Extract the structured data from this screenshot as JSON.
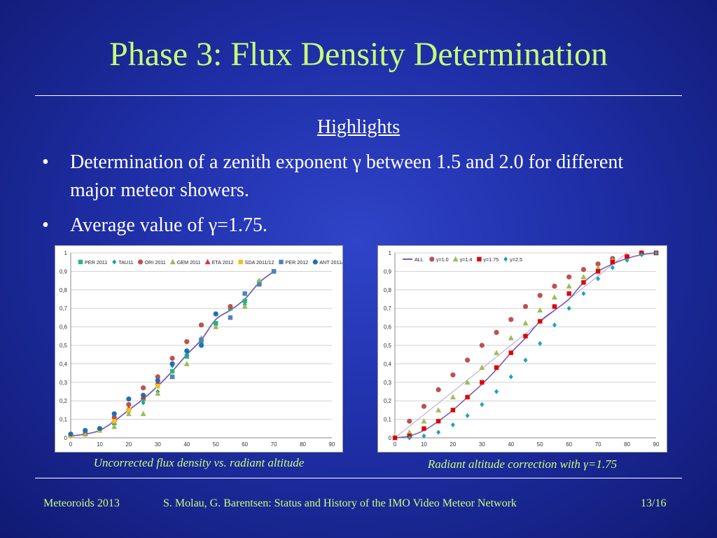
{
  "slide": {
    "title": "Phase 3: Flux Density Determination",
    "subheading": "Highlights",
    "bullets": [
      "Determination of a zenith exponent γ between 1.5 and 2.0 for different major meteor showers.",
      "Average value of γ=1.75."
    ],
    "bullet_symbol": "•",
    "captions": {
      "left": "Uncorrected flux density vs. radiant altitude",
      "right": "Radiant altitude correction with γ=1.75"
    },
    "footer": {
      "left": "Meteoroids 2013",
      "center": "S. Molau, G. Barentsen: Status and History of the IMO Video Meteor Network",
      "right": "13/16"
    },
    "colors": {
      "title": "#c7ff7a",
      "background": "#2236b4"
    }
  },
  "chart_data": [
    {
      "type": "scatter",
      "xlim": [
        0,
        90
      ],
      "ylim": [
        0,
        1
      ],
      "xticks": [
        "0",
        "10",
        "20",
        "30",
        "40",
        "50",
        "60",
        "70",
        "80",
        "90"
      ],
      "yticks": [
        "0",
        "0,1",
        "0,2",
        "0,3",
        "0,4",
        "0,5",
        "0,6",
        "0,7",
        "0,8",
        "0,9",
        "1"
      ],
      "grid": true,
      "legend": "top",
      "series": [
        {
          "name": "PER 2011",
          "color": "#2bb673",
          "marker": "square",
          "x": [
            0,
            5,
            10,
            15,
            20,
            25,
            30,
            35,
            40,
            45,
            50,
            55,
            60,
            65,
            70
          ],
          "y": [
            0.01,
            0.02,
            0.04,
            0.08,
            0.15,
            0.21,
            0.28,
            0.36,
            0.44,
            0.52,
            0.62,
            0.7,
            0.74,
            0.84,
            0.9
          ]
        },
        {
          "name": "TAU11",
          "color": "#1fa0a0",
          "marker": "diamond",
          "x": [
            0,
            5,
            10,
            15,
            20,
            25,
            30,
            35,
            40,
            45,
            50,
            55,
            60,
            65
          ],
          "y": [
            0.01,
            0.02,
            0.04,
            0.09,
            0.14,
            0.19,
            0.25,
            0.39,
            0.45,
            0.52,
            0.61,
            0.7,
            0.72,
            0.85
          ]
        },
        {
          "name": "ORI 2011",
          "color": "#c0504d",
          "marker": "circle",
          "x": [
            0,
            5,
            10,
            15,
            20,
            25,
            30,
            35,
            40,
            45,
            55
          ],
          "y": [
            0.01,
            0.02,
            0.05,
            0.11,
            0.18,
            0.27,
            0.33,
            0.43,
            0.52,
            0.61,
            0.71
          ]
        },
        {
          "name": "GEM 2011",
          "color": "#9bbb59",
          "marker": "triangle",
          "x": [
            0,
            5,
            10,
            15,
            20,
            25,
            30,
            35,
            40,
            45,
            50,
            60,
            65
          ],
          "y": [
            0.01,
            0.02,
            0.04,
            0.06,
            0.13,
            0.13,
            0.24,
            0.33,
            0.4,
            0.54,
            0.6,
            0.71,
            0.85
          ]
        },
        {
          "name": "ETA 2012",
          "color": "#e03030",
          "marker": "triangle",
          "x": [
            15,
            20,
            25,
            30
          ],
          "y": [
            0.1,
            0.16,
            0.22,
            0.3
          ]
        },
        {
          "name": "SDA 2011/12",
          "color": "#f0c020",
          "marker": "square",
          "x": [
            0,
            10,
            15,
            20,
            30
          ],
          "y": [
            0.01,
            0.04,
            0.09,
            0.15,
            0.28
          ]
        },
        {
          "name": "PER 2012",
          "color": "#4f81bd",
          "marker": "square",
          "x": [
            35,
            45,
            55,
            60,
            65,
            70
          ],
          "y": [
            0.33,
            0.53,
            0.65,
            0.78,
            0.83,
            0.9
          ]
        },
        {
          "name": "ANT 2011/12",
          "color": "#1f6fb2",
          "marker": "circle",
          "x": [
            0,
            5,
            10,
            15,
            20,
            25,
            30,
            35,
            40,
            45,
            50
          ],
          "y": [
            0.02,
            0.04,
            0.05,
            0.13,
            0.21,
            0.23,
            0.31,
            0.4,
            0.47,
            0.5,
            0.67
          ]
        }
      ],
      "line": {
        "color": "#7b5fb0",
        "x": [
          0,
          5,
          10,
          15,
          20,
          25,
          30,
          35,
          40,
          45,
          50,
          55,
          60,
          65,
          70
        ],
        "y": [
          0.01,
          0.02,
          0.04,
          0.09,
          0.15,
          0.21,
          0.28,
          0.36,
          0.45,
          0.53,
          0.64,
          0.69,
          0.75,
          0.84,
          0.9
        ]
      }
    },
    {
      "type": "scatter",
      "xlim": [
        0,
        90
      ],
      "ylim": [
        0,
        1
      ],
      "xticks": [
        "0",
        "10",
        "20",
        "30",
        "40",
        "50",
        "60",
        "70",
        "80",
        "90"
      ],
      "yticks": [
        "0",
        "0,1",
        "0,2",
        "0,3",
        "0,4",
        "0,5",
        "0,6",
        "0,7",
        "0,8",
        "0,9",
        "1"
      ],
      "grid": true,
      "legend": "top",
      "series": [
        {
          "name": "ALL",
          "color": "#7b5fb0",
          "marker": "line",
          "x": [
            0,
            5,
            10,
            15,
            20,
            25,
            30,
            35,
            40,
            45,
            50,
            55,
            60,
            65,
            70,
            75,
            80,
            85,
            90
          ],
          "y": [
            0.0,
            0.01,
            0.04,
            0.09,
            0.15,
            0.22,
            0.29,
            0.37,
            0.46,
            0.54,
            0.63,
            0.69,
            0.75,
            0.84,
            0.9,
            0.94,
            0.97,
            0.99,
            1.0
          ]
        },
        {
          "name": "γ=1.0",
          "color": "#c0504d",
          "marker": "circle",
          "x": [
            5,
            10,
            15,
            20,
            25,
            30,
            35,
            40,
            45,
            50,
            55,
            60,
            65,
            70,
            75,
            80,
            85,
            90
          ],
          "y": [
            0.09,
            0.17,
            0.26,
            0.34,
            0.42,
            0.5,
            0.57,
            0.64,
            0.71,
            0.77,
            0.82,
            0.87,
            0.91,
            0.94,
            0.97,
            0.98,
            1.0,
            1.0
          ]
        },
        {
          "name": "γ=1.4",
          "color": "#9bbb59",
          "marker": "triangle",
          "x": [
            5,
            10,
            15,
            20,
            25,
            30,
            35,
            40,
            45,
            50,
            55,
            60,
            65,
            70,
            75,
            80,
            85,
            90
          ],
          "y": [
            0.03,
            0.09,
            0.15,
            0.22,
            0.3,
            0.38,
            0.46,
            0.54,
            0.62,
            0.69,
            0.76,
            0.82,
            0.87,
            0.92,
            0.96,
            0.98,
            1.0,
            1.0
          ]
        },
        {
          "name": "γ=1.75",
          "color": "#e00000",
          "marker": "square",
          "x": [
            0,
            5,
            10,
            15,
            20,
            25,
            30,
            35,
            40,
            45,
            50,
            55,
            60,
            65,
            70,
            75,
            80,
            85,
            90
          ],
          "y": [
            0.0,
            0.01,
            0.05,
            0.09,
            0.15,
            0.22,
            0.3,
            0.38,
            0.46,
            0.55,
            0.63,
            0.71,
            0.78,
            0.84,
            0.9,
            0.95,
            0.98,
            1.0,
            1.0
          ]
        },
        {
          "name": "γ=2.5",
          "color": "#1fa0c0",
          "marker": "diamond",
          "x": [
            5,
            10,
            15,
            20,
            25,
            30,
            35,
            40,
            45,
            50,
            55,
            60,
            65,
            70,
            75,
            80,
            85,
            90
          ],
          "y": [
            0.0,
            0.01,
            0.03,
            0.07,
            0.12,
            0.18,
            0.25,
            0.33,
            0.42,
            0.51,
            0.61,
            0.7,
            0.78,
            0.86,
            0.92,
            0.96,
            0.99,
            1.0
          ]
        }
      ],
      "line": {
        "color": "#b4a0d8",
        "x": [
          0,
          80
        ],
        "y": [
          0,
          1
        ]
      }
    }
  ]
}
